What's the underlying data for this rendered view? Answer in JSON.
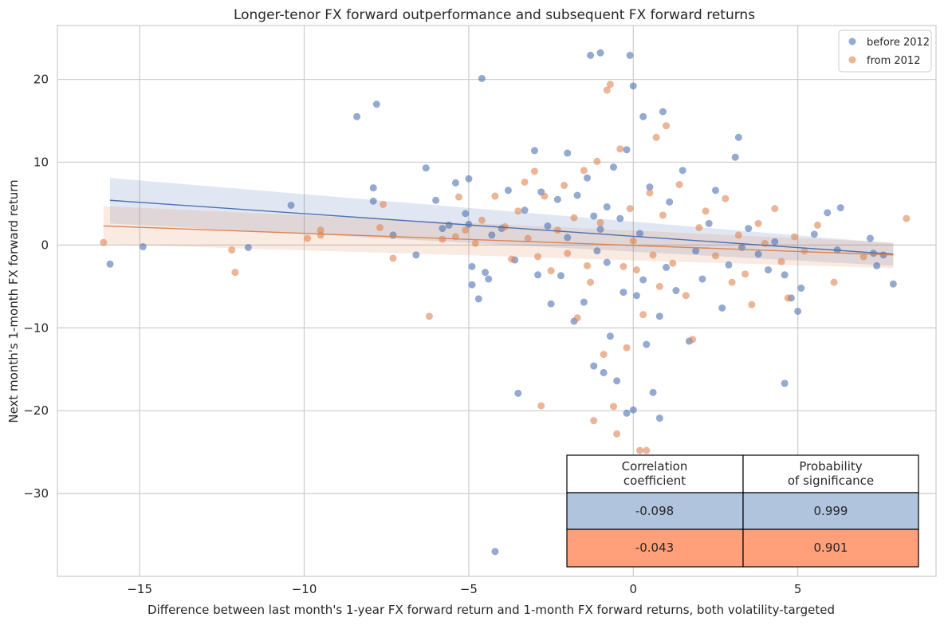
{
  "chart_data": {
    "type": "scatter",
    "title": "Longer-tenor FX forward outperformance and subsequent FX forward returns",
    "xlabel": "Difference between last month's 1-year FX forward return and 1-month FX forward returns, both volatility-targeted",
    "ylabel": "Next month's 1-month FX forward return",
    "xlim": [
      -17.5,
      9.2
    ],
    "ylim": [
      -40,
      26.5
    ],
    "x_ticks": [
      -15,
      -10,
      -5,
      0,
      5
    ],
    "x_tick_labels": [
      "−15",
      "−10",
      "−5",
      "0",
      "5"
    ],
    "y_ticks": [
      -30,
      -20,
      -10,
      0,
      10,
      20
    ],
    "y_tick_labels": [
      "−30",
      "−20",
      "−10",
      "0",
      "10",
      "20"
    ],
    "grid": true,
    "legend_position": "top-right",
    "series": [
      {
        "name": "before 2012",
        "color": "#4c72b0",
        "points": [
          [
            -15.9,
            -2.3
          ],
          [
            -14.9,
            -0.2
          ],
          [
            -11.7,
            -0.3
          ],
          [
            -10.4,
            4.8
          ],
          [
            -8.4,
            15.5
          ],
          [
            -7.9,
            6.9
          ],
          [
            -7.9,
            5.3
          ],
          [
            -7.8,
            17.0
          ],
          [
            -7.3,
            1.2
          ],
          [
            -6.6,
            -1.2
          ],
          [
            -6.3,
            9.3
          ],
          [
            -6.0,
            5.4
          ],
          [
            -5.8,
            2.0
          ],
          [
            -5.6,
            2.4
          ],
          [
            -5.4,
            7.5
          ],
          [
            -5.1,
            3.8
          ],
          [
            -5.0,
            8.0
          ],
          [
            -5.0,
            2.5
          ],
          [
            -4.9,
            -2.6
          ],
          [
            -4.9,
            -4.8
          ],
          [
            -4.7,
            -6.5
          ],
          [
            -4.6,
            20.1
          ],
          [
            -4.5,
            -3.3
          ],
          [
            -4.4,
            -4.1
          ],
          [
            -4.3,
            1.2
          ],
          [
            -4.2,
            -37.0
          ],
          [
            -4.0,
            2.0
          ],
          [
            -3.8,
            6.6
          ],
          [
            -3.6,
            -1.8
          ],
          [
            -3.5,
            -17.9
          ],
          [
            -3.3,
            4.2
          ],
          [
            -3.0,
            11.4
          ],
          [
            -2.9,
            -3.6
          ],
          [
            -2.8,
            6.4
          ],
          [
            -2.6,
            2.3
          ],
          [
            -2.5,
            -7.1
          ],
          [
            -2.3,
            5.5
          ],
          [
            -2.2,
            -3.7
          ],
          [
            -2.0,
            0.9
          ],
          [
            -2.0,
            11.1
          ],
          [
            -1.8,
            -9.2
          ],
          [
            -1.7,
            6.0
          ],
          [
            -1.5,
            -6.9
          ],
          [
            -1.4,
            8.1
          ],
          [
            -1.3,
            22.9
          ],
          [
            -1.2,
            -14.6
          ],
          [
            -1.2,
            3.5
          ],
          [
            -1.1,
            -0.7
          ],
          [
            -1.0,
            23.2
          ],
          [
            -1.0,
            1.9
          ],
          [
            -0.9,
            -15.4
          ],
          [
            -0.8,
            4.6
          ],
          [
            -0.8,
            -2.1
          ],
          [
            -0.7,
            -11.0
          ],
          [
            -0.6,
            9.4
          ],
          [
            -0.5,
            -16.4
          ],
          [
            -0.4,
            3.2
          ],
          [
            -0.3,
            -5.7
          ],
          [
            -0.2,
            11.5
          ],
          [
            -0.2,
            -20.3
          ],
          [
            -0.1,
            22.9
          ],
          [
            0.0,
            19.2
          ],
          [
            0.0,
            -19.9
          ],
          [
            0.1,
            -6.1
          ],
          [
            0.2,
            1.4
          ],
          [
            0.3,
            15.5
          ],
          [
            0.3,
            -4.2
          ],
          [
            0.4,
            -12.0
          ],
          [
            0.5,
            7.0
          ],
          [
            0.6,
            -17.8
          ],
          [
            0.8,
            -8.6
          ],
          [
            0.8,
            -20.9
          ],
          [
            0.9,
            16.1
          ],
          [
            1.0,
            -2.7
          ],
          [
            1.1,
            5.2
          ],
          [
            1.3,
            -5.5
          ],
          [
            1.5,
            9.0
          ],
          [
            1.7,
            -11.6
          ],
          [
            1.9,
            -0.7
          ],
          [
            2.1,
            -4.1
          ],
          [
            2.3,
            2.6
          ],
          [
            2.5,
            6.6
          ],
          [
            2.7,
            -7.6
          ],
          [
            2.9,
            -2.4
          ],
          [
            3.1,
            10.6
          ],
          [
            3.2,
            13.0
          ],
          [
            3.3,
            -0.3
          ],
          [
            3.5,
            2.0
          ],
          [
            3.8,
            -1.1
          ],
          [
            4.1,
            -3.0
          ],
          [
            4.3,
            0.4
          ],
          [
            4.6,
            -3.6
          ],
          [
            4.6,
            -16.7
          ],
          [
            4.8,
            -6.4
          ],
          [
            5.0,
            -8.0
          ],
          [
            5.1,
            -5.2
          ],
          [
            5.5,
            1.3
          ],
          [
            5.9,
            3.9
          ],
          [
            6.2,
            -0.6
          ],
          [
            6.3,
            4.5
          ],
          [
            7.2,
            0.8
          ],
          [
            7.3,
            -1.0
          ],
          [
            7.4,
            -2.5
          ],
          [
            7.6,
            -1.2
          ],
          [
            7.9,
            -4.7
          ]
        ],
        "regression": {
          "x": [
            -15.9,
            7.9
          ],
          "y": [
            5.4,
            -1.1
          ],
          "ci_low_x0": 2.6,
          "ci_high_x0": 8.1,
          "ci_low_x1": -2.5,
          "ci_high_x1": 0.2
        }
      },
      {
        "name": "from 2012",
        "color": "#dd8452",
        "points": [
          [
            -16.1,
            0.3
          ],
          [
            -12.2,
            -0.6
          ],
          [
            -12.1,
            -3.3
          ],
          [
            -9.9,
            0.8
          ],
          [
            -9.5,
            1.8
          ],
          [
            -9.5,
            1.2
          ],
          [
            -7.7,
            2.1
          ],
          [
            -7.6,
            4.9
          ],
          [
            -7.3,
            -1.6
          ],
          [
            -6.2,
            -8.6
          ],
          [
            -5.8,
            0.7
          ],
          [
            -5.4,
            1.0
          ],
          [
            -5.3,
            5.8
          ],
          [
            -5.1,
            1.8
          ],
          [
            -4.8,
            0.2
          ],
          [
            -4.6,
            3.0
          ],
          [
            -4.2,
            5.9
          ],
          [
            -3.9,
            2.2
          ],
          [
            -3.7,
            -1.7
          ],
          [
            -3.5,
            4.1
          ],
          [
            -3.3,
            7.6
          ],
          [
            -3.2,
            0.8
          ],
          [
            -3.0,
            8.9
          ],
          [
            -2.9,
            -1.4
          ],
          [
            -2.8,
            -19.4
          ],
          [
            -2.7,
            5.9
          ],
          [
            -2.5,
            -3.1
          ],
          [
            -2.3,
            1.8
          ],
          [
            -2.1,
            7.2
          ],
          [
            -2.0,
            -1.0
          ],
          [
            -1.8,
            3.3
          ],
          [
            -1.7,
            -8.8
          ],
          [
            -1.5,
            9.0
          ],
          [
            -1.4,
            -2.5
          ],
          [
            -1.3,
            -4.5
          ],
          [
            -1.2,
            -21.2
          ],
          [
            -1.1,
            10.1
          ],
          [
            -1.0,
            2.7
          ],
          [
            -0.9,
            -13.2
          ],
          [
            -0.8,
            18.7
          ],
          [
            -0.7,
            19.4
          ],
          [
            -0.6,
            -19.5
          ],
          [
            -0.5,
            -22.8
          ],
          [
            -0.4,
            11.6
          ],
          [
            -0.3,
            -2.6
          ],
          [
            -0.2,
            -12.4
          ],
          [
            -0.1,
            4.4
          ],
          [
            0.0,
            0.5
          ],
          [
            0.1,
            -3.0
          ],
          [
            0.2,
            -24.8
          ],
          [
            0.3,
            -8.4
          ],
          [
            0.4,
            -24.8
          ],
          [
            0.5,
            6.3
          ],
          [
            0.6,
            -1.2
          ],
          [
            0.7,
            13.0
          ],
          [
            0.8,
            -5.0
          ],
          [
            0.9,
            3.6
          ],
          [
            1.0,
            14.4
          ],
          [
            1.2,
            -2.2
          ],
          [
            1.4,
            7.3
          ],
          [
            1.6,
            -6.1
          ],
          [
            1.8,
            -11.4
          ],
          [
            2.0,
            2.1
          ],
          [
            2.2,
            4.1
          ],
          [
            2.5,
            -1.3
          ],
          [
            2.8,
            5.6
          ],
          [
            3.0,
            -4.5
          ],
          [
            3.2,
            1.2
          ],
          [
            3.4,
            -3.5
          ],
          [
            3.6,
            -7.2
          ],
          [
            3.8,
            2.6
          ],
          [
            4.0,
            0.2
          ],
          [
            4.3,
            4.4
          ],
          [
            4.5,
            -2.0
          ],
          [
            4.7,
            -6.4
          ],
          [
            4.9,
            1.0
          ],
          [
            5.2,
            -0.7
          ],
          [
            5.6,
            2.4
          ],
          [
            6.1,
            -4.5
          ],
          [
            7.0,
            -1.4
          ],
          [
            8.3,
            3.2
          ]
        ],
        "regression": {
          "x": [
            -16.1,
            7.9
          ],
          "y": [
            2.3,
            -1.2
          ],
          "ci_low_x0": 0.1,
          "ci_high_x0": 4.7,
          "ci_low_x1": -2.8,
          "ci_high_x1": 0.3
        }
      }
    ],
    "table": {
      "headers": [
        "Correlation\ncoefficient",
        "Probability\nof significance"
      ],
      "rows": [
        {
          "values": [
            "-0.098",
            "0.999"
          ],
          "color": "#b0c4de"
        },
        {
          "values": [
            "-0.043",
            "0.901"
          ],
          "color": "#ffa07a"
        }
      ]
    }
  }
}
